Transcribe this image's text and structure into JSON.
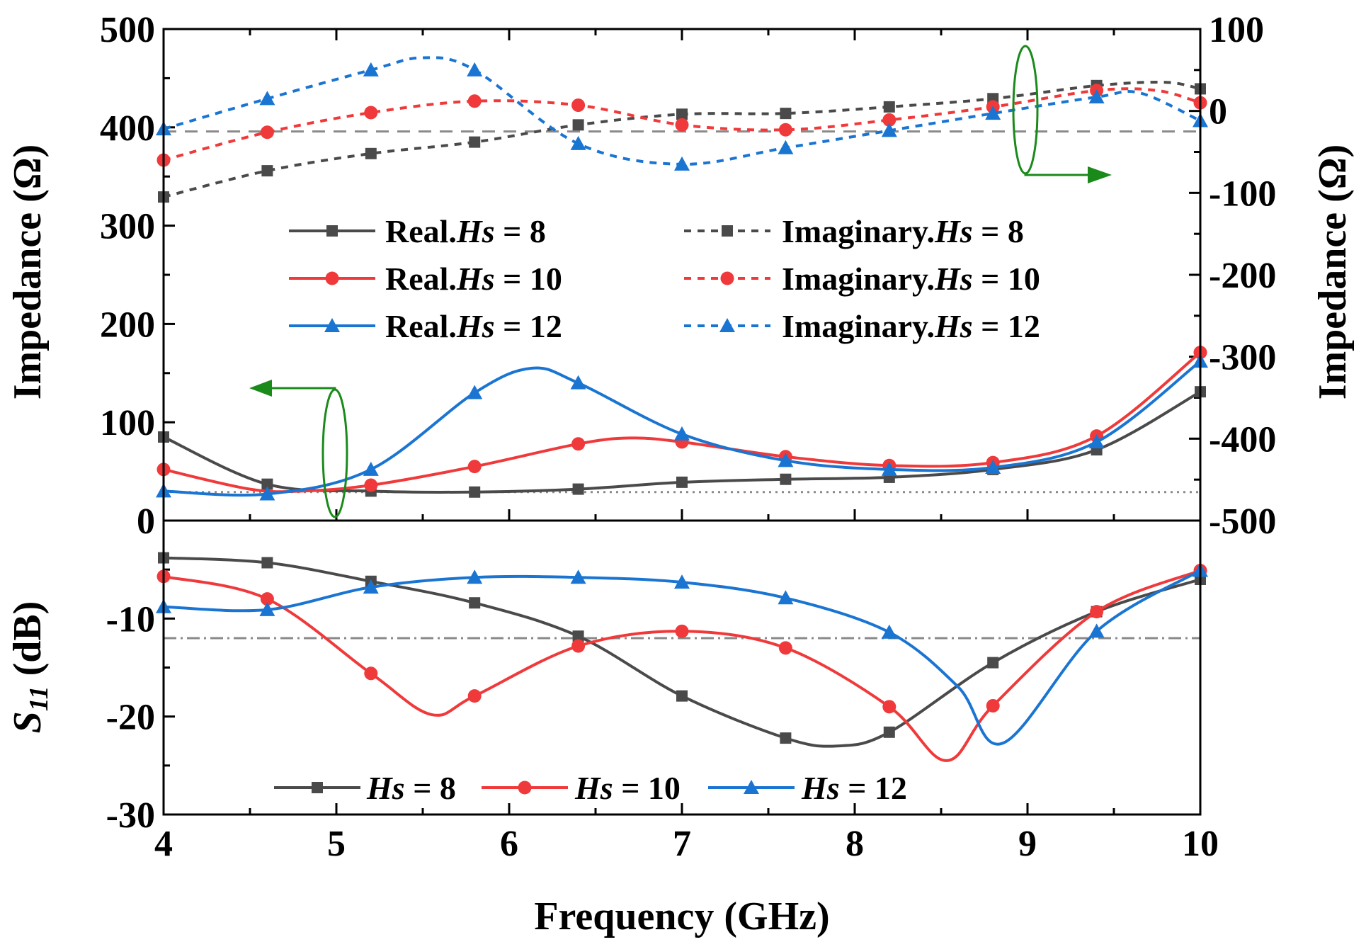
{
  "chart_data": [
    {
      "panel": "impedance",
      "type": "line",
      "xlim": [
        4,
        10
      ],
      "ylim_left": [
        0,
        500
      ],
      "ylim_right": [
        -500,
        100
      ],
      "ylabel_left": "Impedance (Ω)",
      "ylabel_right": "Impedance (Ω)",
      "left_ticks": [
        "0",
        "100",
        "200",
        "300",
        "400",
        "500"
      ],
      "right_ticks": [
        "-500",
        "-400",
        "-300",
        "-200",
        "-100",
        "0",
        "100"
      ],
      "markers_x": [
        4,
        4.6,
        5.2,
        5.8,
        6.4,
        7,
        7.6,
        8.2,
        8.8,
        9.4,
        10
      ],
      "reference_lines": [
        {
          "axis": "left",
          "value": 29,
          "style": "dotted"
        },
        {
          "axis": "right",
          "value": -25,
          "style": "dashed"
        }
      ],
      "series": [
        {
          "name": "Real.Hs = 8",
          "axis": "left",
          "color": "#4a4a4a",
          "marker": "square",
          "dash": false,
          "x": [
            4,
            4.6,
            5.2,
            5.8,
            6.4,
            7,
            7.6,
            8.2,
            8.8,
            9.4,
            10
          ],
          "y": [
            85,
            37,
            30,
            29,
            32,
            39,
            42,
            44,
            52,
            72,
            131
          ]
        },
        {
          "name": "Real.Hs = 10",
          "axis": "left",
          "color": "#f0393a",
          "marker": "circle",
          "dash": false,
          "x": [
            4,
            4.5,
            4.8,
            5.2,
            5.8,
            6.4,
            6.7,
            7,
            7.6,
            8.2,
            8.8,
            9.4,
            10
          ],
          "y": [
            52,
            32,
            30,
            36,
            55,
            78,
            84,
            80,
            65,
            56,
            59,
            86,
            171
          ]
        },
        {
          "name": "Real.Hs = 12",
          "axis": "left",
          "color": "#1a75d2",
          "marker": "triangle",
          "dash": false,
          "x": [
            4,
            4.6,
            5.2,
            5.8,
            6.13,
            6.4,
            7,
            7.6,
            8.2,
            8.8,
            9.4,
            10
          ],
          "y": [
            30,
            27,
            52,
            130,
            155,
            140,
            88,
            61,
            52,
            54,
            80,
            162
          ]
        },
        {
          "name": "Imaginary.Hs = 8",
          "axis": "right",
          "color": "#4a4a4a",
          "marker": "square",
          "dash": true,
          "x": [
            4,
            4.6,
            5.2,
            5.8,
            6.4,
            7,
            7.6,
            8.2,
            8.8,
            9.4,
            9.8,
            10
          ],
          "y": [
            -105,
            -73,
            -52,
            -38,
            -17,
            -4,
            -3,
            5,
            15,
            31,
            35,
            27
          ]
        },
        {
          "name": "Imaginary.Hs = 10",
          "axis": "right",
          "color": "#f0393a",
          "marker": "circle",
          "dash": true,
          "x": [
            4,
            4.6,
            5.2,
            5.8,
            6.4,
            7,
            7.6,
            8.2,
            8.8,
            9.4,
            9.75,
            10
          ],
          "y": [
            -60,
            -26,
            -2,
            12,
            7,
            -17,
            -23,
            -11,
            5,
            25,
            25,
            10
          ]
        },
        {
          "name": "Imaginary.Hs = 12",
          "axis": "right",
          "color": "#1a75d2",
          "marker": "triangle",
          "dash": true,
          "x": [
            4,
            4.6,
            5.2,
            5.5,
            5.8,
            6.4,
            7,
            7.6,
            8.2,
            8.8,
            9.4,
            9.65,
            10
          ],
          "y": [
            -22,
            15,
            50,
            65,
            50,
            -40,
            -65,
            -45,
            -24,
            -3,
            17,
            22,
            -12
          ]
        }
      ]
    },
    {
      "panel": "s11",
      "type": "line",
      "xlim": [
        4,
        10
      ],
      "ylim": [
        -30,
        0
      ],
      "ylabel": "S11 (dB)",
      "xlabel": "Frequency (GHz)",
      "x_ticks": [
        "4",
        "5",
        "6",
        "7",
        "8",
        "9",
        "10"
      ],
      "y_ticks": [
        "-30",
        "-20",
        "-10"
      ],
      "reference_lines": [
        {
          "value": -12,
          "style": "dash-dot"
        }
      ],
      "series": [
        {
          "name": "Hs = 8",
          "color": "#4a4a4a",
          "marker": "square",
          "x": [
            4,
            4.6,
            5.2,
            5.8,
            6.4,
            7,
            7.6,
            7.9,
            8.2,
            8.8,
            9.4,
            10
          ],
          "y": [
            -3.8,
            -4.3,
            -6.2,
            -8.4,
            -11.8,
            -17.9,
            -22.2,
            -23,
            -21.6,
            -14.5,
            -9.3,
            -6
          ]
        },
        {
          "name": "Hs = 10",
          "color": "#f0393a",
          "marker": "circle",
          "x": [
            4,
            4.6,
            5.2,
            5.55,
            5.8,
            6.4,
            7,
            7.6,
            8.2,
            8.53,
            8.8,
            9.4,
            10
          ],
          "y": [
            -5.7,
            -8,
            -15.6,
            -19.8,
            -17.9,
            -12.8,
            -11.3,
            -13,
            -19,
            -24.5,
            -18.9,
            -9.3,
            -5.1
          ]
        },
        {
          "name": "Hs = 12",
          "color": "#1a75d2",
          "marker": "triangle",
          "x": [
            4,
            4.6,
            5.2,
            5.8,
            6.4,
            7,
            7.6,
            8.2,
            8.6,
            8.86,
            9.4,
            10
          ],
          "y": [
            -8.8,
            -9.1,
            -6.8,
            -5.8,
            -5.8,
            -6.3,
            -7.9,
            -11.4,
            -17,
            -22.7,
            -11.3,
            -5.1
          ]
        }
      ]
    }
  ],
  "legends": {
    "impedance": [
      {
        "prefix": "Real.",
        "italic": "Hs",
        "suffix": " = 8"
      },
      {
        "prefix": "Imaginary.",
        "italic": "Hs",
        "suffix": " = 8"
      },
      {
        "prefix": "Real.",
        "italic": "Hs",
        "suffix": " = 10"
      },
      {
        "prefix": "Imaginary.",
        "italic": "Hs",
        "suffix": " = 10"
      },
      {
        "prefix": "Real.",
        "italic": "Hs",
        "suffix": " = 12"
      },
      {
        "prefix": "Imaginary.",
        "italic": "Hs",
        "suffix": " = 12"
      }
    ],
    "s11": [
      {
        "italic": "Hs",
        "suffix": " = 8"
      },
      {
        "italic": "Hs",
        "suffix": " = 10"
      },
      {
        "italic": "Hs",
        "suffix": " = 12"
      }
    ]
  },
  "labels": {
    "ylabel_left": "Impedance (Ω)",
    "ylabel_right": "Impedance (Ω)",
    "s11_main": "S",
    "s11_sub": "11",
    "s11_unit": " (dB)",
    "xlabel": "Frequency (GHz)"
  },
  "colors": {
    "hs8": "#4a4a4a",
    "hs10": "#f0393a",
    "hs12": "#1a75d2",
    "annotation": "#1a8a1a",
    "reference": "#8a8a8a"
  }
}
